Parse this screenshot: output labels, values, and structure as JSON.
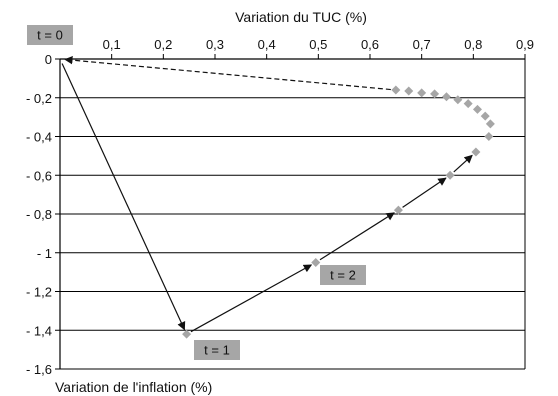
{
  "chart_data": {
    "type": "scatter",
    "xlabel": "Variation du TUC (%)",
    "ylabel": "Variation de l'inflation (%)",
    "xlim": [
      0,
      0.9
    ],
    "ylim": [
      -1.6,
      0
    ],
    "x_ticks": [
      "0,1",
      "0,2",
      "0,3",
      "0,4",
      "0,5",
      "0,6",
      "0,7",
      "0,8",
      "0,9"
    ],
    "y_ticks": [
      "0",
      "- 0,2",
      "- 0,4",
      "- 0,6",
      "- 0,8",
      "- 1",
      "- 1,2",
      "- 1,4",
      "- 1,6"
    ],
    "x_axis_position": "top",
    "grid": "horizontal",
    "marker_color": "#a6a6a6",
    "points": [
      {
        "x": 0.0,
        "y": 0.0
      },
      {
        "x": 0.245,
        "y": -1.42
      },
      {
        "x": 0.495,
        "y": -1.05
      },
      {
        "x": 0.655,
        "y": -0.78
      },
      {
        "x": 0.755,
        "y": -0.6
      },
      {
        "x": 0.805,
        "y": -0.48
      },
      {
        "x": 0.83,
        "y": -0.4
      },
      {
        "x": 0.833,
        "y": -0.335
      },
      {
        "x": 0.823,
        "y": -0.295
      },
      {
        "x": 0.808,
        "y": -0.26
      },
      {
        "x": 0.79,
        "y": -0.23
      },
      {
        "x": 0.77,
        "y": -0.21
      },
      {
        "x": 0.748,
        "y": -0.195
      },
      {
        "x": 0.725,
        "y": -0.18
      },
      {
        "x": 0.7,
        "y": -0.175
      },
      {
        "x": 0.675,
        "y": -0.165
      },
      {
        "x": 0.65,
        "y": -0.16
      }
    ],
    "annotations": [
      {
        "text": "t = 0",
        "x": 0.0,
        "y": 0.0
      },
      {
        "text": "t = 1",
        "x": 0.245,
        "y": -1.42
      },
      {
        "text": "t = 2",
        "x": 0.495,
        "y": -1.05
      }
    ]
  }
}
